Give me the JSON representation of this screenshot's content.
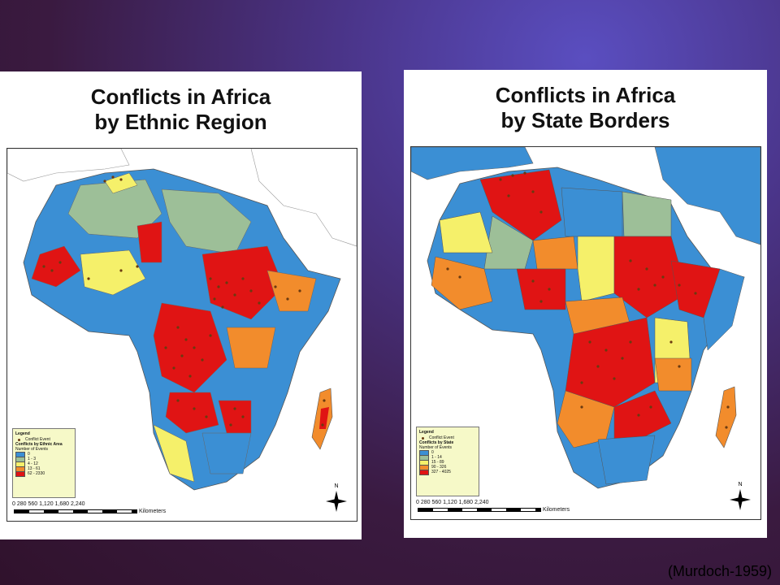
{
  "maps": [
    {
      "title": "Conflicts in Africa\nby Ethnic Region",
      "legend": {
        "title": "Legend",
        "point_label": "Conflict Event",
        "class_title": "Conflicts by Ethnic Area",
        "class_subtitle": "Number of Events",
        "classes": [
          {
            "label": "0",
            "color": "#3b8fd4"
          },
          {
            "label": "1 - 3",
            "color": "#9dbf98"
          },
          {
            "label": "4 - 12",
            "color": "#f5f06a"
          },
          {
            "label": "13 - 61",
            "color": "#f28c2c"
          },
          {
            "label": "62 - 2330",
            "color": "#e01414"
          }
        ]
      },
      "scale": {
        "ticks": "0   280 560     1,120      1,680     2,240",
        "unit": "Kilometers"
      },
      "north": "N"
    },
    {
      "title": "Conflicts in Africa\nby State Borders",
      "legend": {
        "title": "Legend",
        "point_label": "Conflict Event",
        "class_title": "Conflicts by State",
        "class_subtitle": "Number of Events",
        "classes": [
          {
            "label": "0",
            "color": "#3b8fd4"
          },
          {
            "label": "1 - 14",
            "color": "#9dbf98"
          },
          {
            "label": "15 - 89",
            "color": "#f5f06a"
          },
          {
            "label": "90 - 326",
            "color": "#f28c2c"
          },
          {
            "label": "327 - 4025",
            "color": "#e01414"
          }
        ]
      },
      "scale": {
        "ticks": "0   280 560     1,120      1,680     2,240",
        "unit": "Kilometers"
      },
      "north": "N"
    }
  ],
  "citation": "(Murdoch-1959)",
  "colors": {
    "ocean": "#ffffff",
    "land_outside": "#ffffff",
    "event_dot": "#6b3a10",
    "blue": "#3b8fd4",
    "green": "#9dbf98",
    "yellow": "#f5f06a",
    "orange": "#f28c2c",
    "red": "#e01414"
  }
}
